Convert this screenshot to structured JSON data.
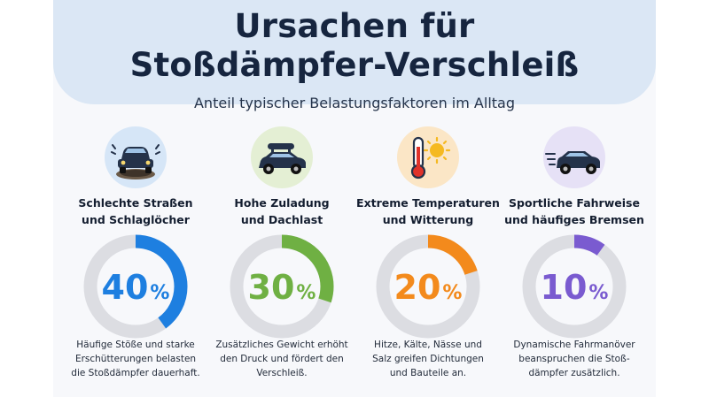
{
  "header": {
    "title_line1": "Ursachen für",
    "title_line2": "Stoßdämpfer-Verschleiß",
    "subtitle": "Anteil typischer Belastungsfaktoren im Alltag"
  },
  "chart_data": {
    "type": "pie",
    "title": "Ursachen für Stoßdämpfer-Verschleiß",
    "subtitle": "Anteil typischer Belastungsfaktoren im Alltag",
    "categories": [
      "Schlechte Straßen und Schlaglöcher",
      "Hohe Zuladung und Dachlast",
      "Extreme Temperaturen und Witterung",
      "Sportliche Fahrweise und häufiges Bremsen"
    ],
    "values": [
      40,
      30,
      20,
      10
    ],
    "unit": "%"
  },
  "factors": [
    {
      "label_line1": "Schlechte Straßen",
      "label_line2": "und Schlaglöcher",
      "value": 40,
      "value_text": "40",
      "unit": "%",
      "color": "#1e7fe0",
      "icon": "car-pothole-icon",
      "icon_bg": "#d6e6f7",
      "desc_line1": "Häufige Stöße und starke",
      "desc_line2": "Erschütterungen belasten",
      "desc_line3": "die Stoßdämpfer dauerhaft."
    },
    {
      "label_line1": "Hohe Zuladung",
      "label_line2": "und Dachlast",
      "value": 30,
      "value_text": "30",
      "unit": "%",
      "color": "#6fb043",
      "icon": "car-roofbox-icon",
      "icon_bg": "#e4efd4",
      "desc_line1": "Zusätzliches Gewicht erhöht",
      "desc_line2": "den Druck und fördert den",
      "desc_line3": "Verschleiß."
    },
    {
      "label_line1": "Extreme Temperaturen",
      "label_line2": "und Witterung",
      "value": 20,
      "value_text": "20",
      "unit": "%",
      "color": "#f38a1c",
      "icon": "thermometer-sun-icon",
      "icon_bg": "#fbe6c6",
      "desc_line1": "Hitze, Kälte, Nässe und",
      "desc_line2": "Salz greifen Dichtungen",
      "desc_line3": "und Bauteile an."
    },
    {
      "label_line1": "Sportliche Fahrweise",
      "label_line2": "und häufiges Bremsen",
      "value": 10,
      "value_text": "10",
      "unit": "%",
      "color": "#7a5bd0",
      "icon": "fast-car-icon",
      "icon_bg": "#e6e1f6",
      "desc_line1": "Dynamische Fahrmanöver",
      "desc_line2": "beanspruchen die Stoß-",
      "desc_line3": "dämpfer zusätzlich."
    }
  ],
  "colors": {
    "track": "#dcdde2",
    "title": "#16253f",
    "header_bg": "#dbe7f5"
  }
}
